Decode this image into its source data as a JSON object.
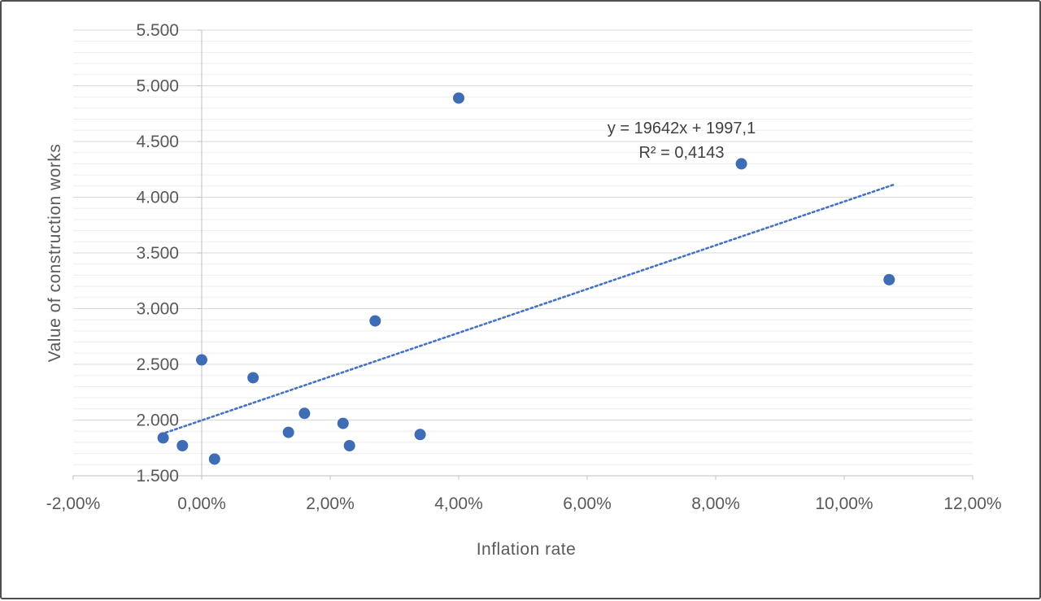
{
  "chart_data": {
    "type": "scatter",
    "title": "",
    "xlabel": "Inflation rate",
    "ylabel": "Value of construction works",
    "xlim": [
      -2,
      12
    ],
    "ylim": [
      1500,
      5500
    ],
    "x_tick_labels": [
      "-2,00%",
      "0,00%",
      "2,00%",
      "4,00%",
      "6,00%",
      "8,00%",
      "10,00%",
      "12,00%"
    ],
    "x_tick_values": [
      -2,
      0,
      2,
      4,
      6,
      8,
      10,
      12
    ],
    "y_tick_labels": [
      "1.500",
      "2.000",
      "2.500",
      "3.000",
      "3.500",
      "4.000",
      "4.500",
      "5.000",
      "5.500"
    ],
    "y_tick_values": [
      1500,
      2000,
      2500,
      3000,
      3500,
      4000,
      4500,
      5000,
      5500
    ],
    "y_minor_step": 100,
    "grid": "horizontal-only",
    "legend": "none",
    "points": [
      {
        "x": -0.6,
        "y": 1840
      },
      {
        "x": -0.3,
        "y": 1770
      },
      {
        "x": 0.0,
        "y": 2540
      },
      {
        "x": 0.2,
        "y": 1650
      },
      {
        "x": 0.8,
        "y": 2380
      },
      {
        "x": 1.35,
        "y": 1890
      },
      {
        "x": 1.6,
        "y": 2060
      },
      {
        "x": 2.2,
        "y": 1970
      },
      {
        "x": 2.3,
        "y": 1770
      },
      {
        "x": 2.7,
        "y": 2890
      },
      {
        "x": 3.4,
        "y": 1870
      },
      {
        "x": 4.0,
        "y": 4890
      },
      {
        "x": 8.4,
        "y": 4300
      },
      {
        "x": 10.7,
        "y": 3260
      }
    ],
    "trendline": {
      "slope": 19642,
      "intercept": 1997.1,
      "x_start": -0.63,
      "x_end": 10.78,
      "equation_label": "y = 19642x + 1997,1",
      "r2_label": "R² = 0,4143",
      "style": "dotted"
    },
    "colors": {
      "point": "#3E6DB5",
      "trendline": "#4472C4",
      "major_grid": "#D9D9D9",
      "minor_grid": "#EDEDED",
      "axis_line": "#BFBFBF",
      "tick_text": "#595959",
      "annotation_text": "#404040"
    }
  }
}
